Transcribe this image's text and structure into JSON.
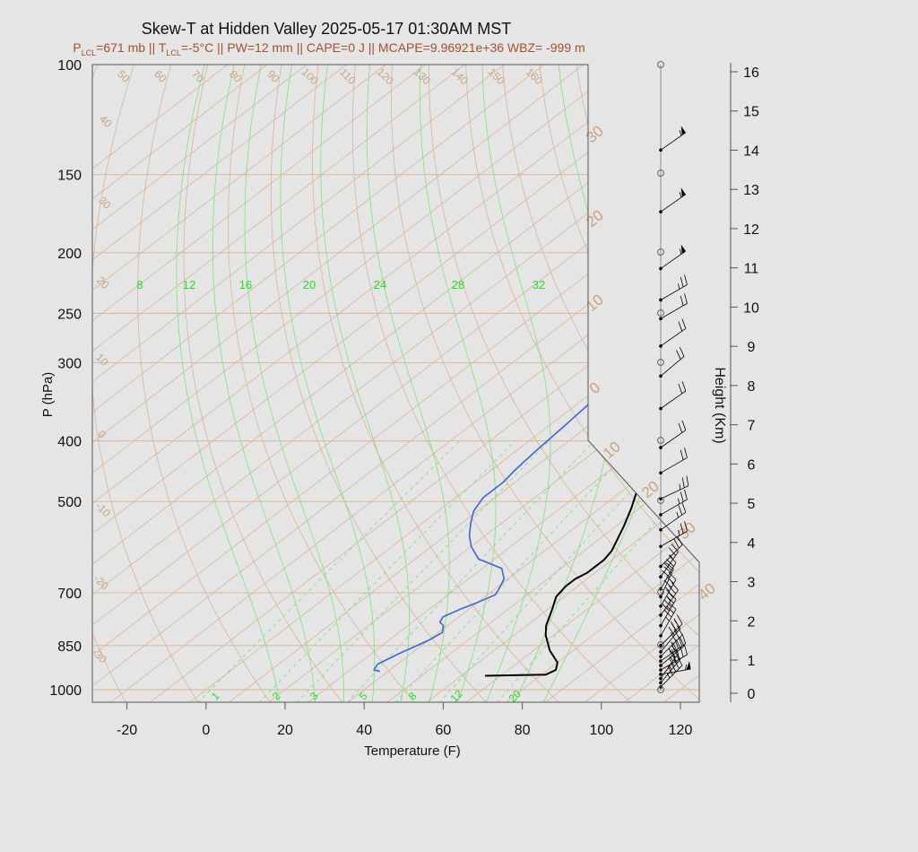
{
  "chart_data": {
    "type": "line",
    "title": "Skew-T at Hidden Valley 2025-05-17 01:30AM MST",
    "subtitle": {
      "lcl_p_prefix": "P",
      "lcl_p_sub": "LCL",
      "lcl_p_value": "=671 mb",
      "sep": " || ",
      "lcl_t_prefix": "T",
      "lcl_t_sub": "LCL",
      "lcl_t_value": "=-5°C",
      "rest": " || PW=12 mm || CAPE=0 J || MCAPE=9.96921e+36 WBZ= -999 m"
    },
    "xlabel": "Temperature (F)",
    "ylabel": "P (hPa)",
    "y2label": "Height (Km)",
    "xlim": [
      -28,
      125
    ],
    "ylim": [
      1030,
      100
    ],
    "yscale": "log",
    "x_ticks": [
      "-20",
      "0",
      "20",
      "40",
      "60",
      "80",
      "100",
      "120"
    ],
    "y_ticks": [
      "100",
      "150",
      "200",
      "250",
      "300",
      "400",
      "500",
      "700",
      "850",
      "1000"
    ],
    "height_ticks": [
      "0",
      "1",
      "2",
      "3",
      "4",
      "5",
      "6",
      "7",
      "8",
      "9",
      "10",
      "11",
      "12",
      "13",
      "14",
      "15",
      "16"
    ],
    "isotherm_labels": [
      "50",
      "60",
      "70",
      "80",
      "90",
      "100",
      "110",
      "120",
      "130",
      "140",
      "150",
      "160",
      "40",
      "30",
      "20",
      "10",
      "0",
      "-10",
      "-20",
      "-30"
    ],
    "dry_adiabat_labels": [
      "30",
      "20",
      "10",
      "0",
      "10",
      "20",
      "30",
      "40"
    ],
    "mixing_ratio_labels": [
      "8",
      "12",
      "16",
      "20",
      "24",
      "28",
      "32"
    ],
    "moist_adiabat_labels": [
      "1",
      "2",
      "3",
      "5",
      "8",
      "12",
      "20"
    ],
    "series": [
      {
        "name": "",
        "color": "#000000",
        "points": [
          [
            66,
            950
          ],
          [
            81,
            946
          ],
          [
            82,
            930
          ],
          [
            80,
            905
          ],
          [
            74,
            865
          ],
          [
            68,
            818
          ],
          [
            65,
            790
          ],
          [
            61,
            742
          ],
          [
            58,
            710
          ],
          [
            57,
            683
          ],
          [
            57,
            665
          ],
          [
            58,
            650
          ],
          [
            58,
            620
          ],
          [
            57,
            600
          ],
          [
            52,
            548
          ],
          [
            48,
            513
          ],
          [
            40,
            455
          ],
          [
            33,
            400
          ],
          [
            26,
            340
          ],
          [
            21,
            300
          ],
          [
            20,
            270
          ],
          [
            21,
            240
          ],
          [
            22,
            215
          ],
          [
            24,
            190
          ],
          [
            28,
            165
          ],
          [
            34,
            138
          ],
          [
            43,
            117
          ],
          [
            55,
            100
          ]
        ]
      },
      {
        "name": "",
        "color": "#3c64dc",
        "points": [
          [
            38,
            935
          ],
          [
            36,
            930
          ],
          [
            35,
            910
          ],
          [
            37,
            875
          ],
          [
            40,
            835
          ],
          [
            41,
            810
          ],
          [
            39,
            790
          ],
          [
            37,
            780
          ],
          [
            36,
            765
          ],
          [
            38,
            742
          ],
          [
            40,
            725
          ],
          [
            42,
            705
          ],
          [
            41,
            690
          ],
          [
            39,
            665
          ],
          [
            35,
            640
          ],
          [
            26,
            618
          ],
          [
            20,
            590
          ],
          [
            16,
            567
          ],
          [
            12,
            540
          ],
          [
            9,
            518
          ],
          [
            7,
            493
          ],
          [
            7,
            466
          ],
          [
            6,
            446
          ],
          [
            5,
            416
          ],
          [
            4,
            380
          ],
          [
            3,
            350
          ],
          [
            3,
            320
          ],
          [
            1,
            290
          ],
          [
            0,
            270
          ],
          [
            -2,
            250
          ],
          [
            -3,
            232
          ],
          [
            -3,
            210
          ],
          [
            -3,
            180
          ],
          [
            -3,
            165
          ],
          [
            0,
            150
          ],
          [
            4,
            135
          ],
          [
            12,
            122
          ],
          [
            19,
            112
          ],
          [
            26,
            100
          ]
        ]
      }
    ],
    "wind_barbs": [
      {
        "p": 990,
        "ws": 45,
        "wd": 225
      },
      {
        "p": 975,
        "ws": 35,
        "wd": 220
      },
      {
        "p": 960,
        "ws": 25,
        "wd": 215
      },
      {
        "p": 945,
        "ws": 55,
        "wd": 260
      },
      {
        "p": 930,
        "ws": 40,
        "wd": 240
      },
      {
        "p": 915,
        "ws": 35,
        "wd": 230
      },
      {
        "p": 900,
        "ws": 45,
        "wd": 235
      },
      {
        "p": 885,
        "ws": 30,
        "wd": 225
      },
      {
        "p": 870,
        "ws": 30,
        "wd": 220
      },
      {
        "p": 850,
        "ws": 30,
        "wd": 225
      },
      {
        "p": 820,
        "ws": 35,
        "wd": 210
      },
      {
        "p": 790,
        "ws": 40,
        "wd": 210
      },
      {
        "p": 760,
        "ws": 35,
        "wd": 215
      },
      {
        "p": 735,
        "ws": 35,
        "wd": 210
      },
      {
        "p": 710,
        "ws": 30,
        "wd": 205
      },
      {
        "p": 690,
        "ws": 30,
        "wd": 210
      },
      {
        "p": 660,
        "ws": 25,
        "wd": 215
      },
      {
        "p": 635,
        "ws": 20,
        "wd": 225
      },
      {
        "p": 590,
        "ws": 25,
        "wd": 240
      },
      {
        "p": 555,
        "ws": 25,
        "wd": 235
      },
      {
        "p": 525,
        "ws": 25,
        "wd": 240
      },
      {
        "p": 495,
        "ws": 25,
        "wd": 245
      },
      {
        "p": 450,
        "ws": 20,
        "wd": 240
      },
      {
        "p": 410,
        "ws": 20,
        "wd": 235
      },
      {
        "p": 355,
        "ws": 20,
        "wd": 235
      },
      {
        "p": 315,
        "ws": 20,
        "wd": 230
      },
      {
        "p": 282,
        "ws": 20,
        "wd": 235
      },
      {
        "p": 255,
        "ws": 20,
        "wd": 240
      },
      {
        "p": 238,
        "ws": 25,
        "wd": 240
      },
      {
        "p": 212,
        "ws": 55,
        "wd": 235
      },
      {
        "p": 172,
        "ws": 55,
        "wd": 235
      },
      {
        "p": 137,
        "ws": 55,
        "wd": 235
      }
    ]
  },
  "colors": {
    "background": "#e5e5e5",
    "isotherm": "#d7b594",
    "dry_adiabat": "#d7b594",
    "moist_adiabat": "#7de27d",
    "mixing_ratio": "#7de27d",
    "temperature": "#000000",
    "dewpoint": "#3c64dc",
    "subtitle": "#a0522d"
  }
}
